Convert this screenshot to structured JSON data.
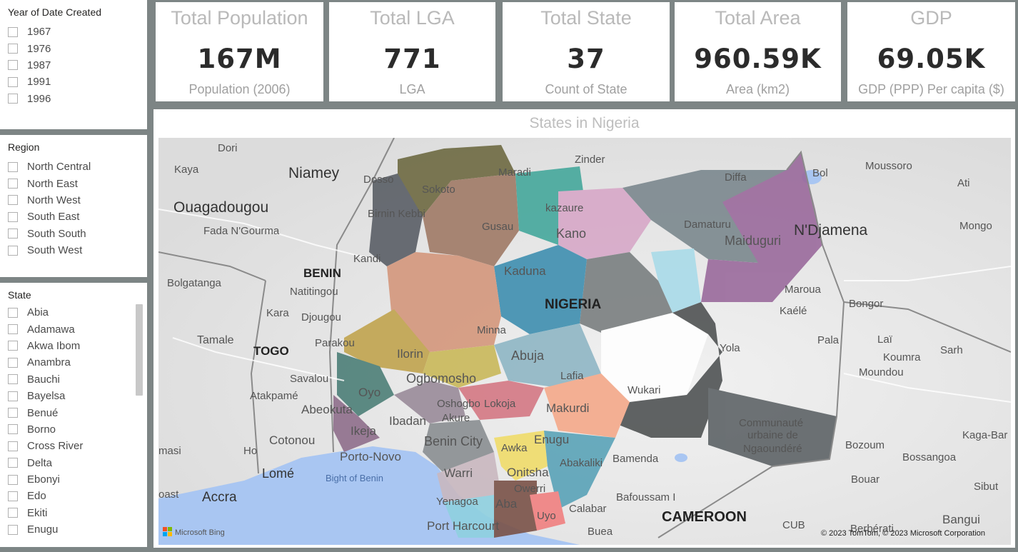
{
  "year_slicer": {
    "title": "Year of Date Created",
    "options": [
      "1967",
      "1976",
      "1987",
      "1991",
      "1996"
    ]
  },
  "region_slicer": {
    "title": "Region",
    "options": [
      "North Central",
      "North East",
      "North West",
      "South East",
      "South South",
      "South West"
    ]
  },
  "state_slicer": {
    "title": "State",
    "options": [
      "Abia",
      "Adamawa",
      "Akwa Ibom",
      "Anambra",
      "Bauchi",
      "Bayelsa",
      "Benué",
      "Borno",
      "Cross River",
      "Delta",
      "Ebonyi",
      "Edo",
      "Ekiti",
      "Enugu"
    ]
  },
  "cards": [
    {
      "title": "Total Population",
      "value": "167M",
      "label": "Population (2006)"
    },
    {
      "title": "Total LGA",
      "value": "771",
      "label": "LGA"
    },
    {
      "title": "Total State",
      "value": "37",
      "label": "Count of State"
    },
    {
      "title": "Total Area",
      "value": "960.59K",
      "label": "Area (km2)"
    },
    {
      "title": "GDP",
      "value": "69.05K",
      "label": "GDP (PPP) Per capita ($)"
    }
  ],
  "map": {
    "title": "States in Nigeria",
    "bing_logo": "Microsoft Bing",
    "copyright": "© 2023 TomTom, © 2023 Microsoft Corporation",
    "labels": {
      "dori": "Dori",
      "kaya": "Kaya",
      "niamey": "Niamey",
      "dosso": "Dosso",
      "maradi": "Maradi",
      "zinder": "Zinder",
      "diffa": "Diffa",
      "bol": "Bol",
      "moussoro": "Moussoro",
      "ati": "Ati",
      "ouagadougou": "Ouagadougou",
      "fada": "Fada N'Gourma",
      "sokoto": "Sokoto",
      "birnin_kebbi": "Birnin Kebbi",
      "kazaure": "kazaure",
      "gusau": "Gusau",
      "kano": "Kano",
      "damaturu": "Damaturu",
      "maiduguri": "Maiduguri",
      "ndjamena": "N'Djamena",
      "mongo": "Mongo",
      "kandi": "Kandi",
      "benin": "BENIN",
      "bolgatanga": "Bolgatanga",
      "natitingou": "Natitingou",
      "kaduna": "Kaduna",
      "nigeria": "NIGERIA",
      "maroua": "Maroua",
      "bongor": "Bongor",
      "kara": "Kara",
      "djougou": "Djougou",
      "kaele": "Kaélé",
      "tamale": "Tamale",
      "parakou": "Parakou",
      "minna": "Minna",
      "togo": "TOGO",
      "ilorin": "Ilorin",
      "abuja": "Abuja",
      "yola": "Yola",
      "pala": "Pala",
      "lai": "Laï",
      "sarh": "Sarh",
      "koumra": "Koumra",
      "moundou": "Moundou",
      "ogbomosho": "Ogbomosho",
      "savalou": "Savalou",
      "lafia": "Lafia",
      "oyo": "Oyo",
      "atakpame": "Atakpamé",
      "wukari": "Wukari",
      "abeokuta": "Abeokuta",
      "oshogbo": "Oshogbo",
      "lokoja": "Lokoja",
      "makurdi": "Makurdi",
      "ibadan": "Ibadan",
      "akure": "Akure",
      "communaute": "Communauté",
      "urbaine": "urbaine de",
      "ngaoundere": "Ngaoundéré",
      "ikeja": "Ikeja",
      "benin_city": "Benin City",
      "enugu": "Enugu",
      "cotonou": "Cotonou",
      "kaga_bar": "Kaga-Bar",
      "masi": "masi",
      "ho": "Ho",
      "porto_novo": "Porto-Novo",
      "awka": "Awka",
      "abakaliki": "Abakaliki",
      "bamenda": "Bamenda",
      "bozoum": "Bozoum",
      "bossangoa": "Bossangoa",
      "lome": "Lomé",
      "bight": "Bight of Benin",
      "warri": "Warri",
      "onitsha": "Onitsha",
      "owerri": "Owerri",
      "bouar": "Bouar",
      "oast": "oast",
      "accra": "Accra",
      "bafoussam": "Bafoussam I",
      "sibut": "Sibut",
      "yenagoa": "Yenagoa",
      "aba": "Aba",
      "calabar": "Calabar",
      "cameroon": "CAMEROON",
      "bangui": "Bangui",
      "uyo": "Uyo",
      "port_harcourt": "Port Harcourt",
      "cub": "CUB",
      "berberati": "Berbérati",
      "buea": "Buea"
    }
  }
}
